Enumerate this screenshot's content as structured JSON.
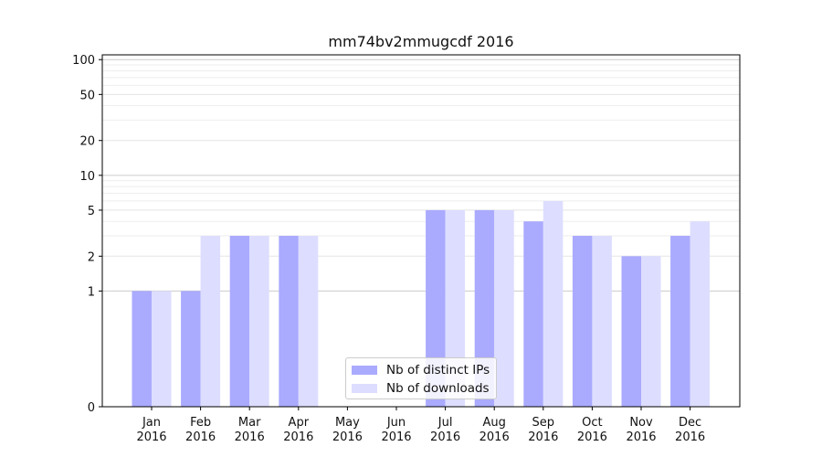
{
  "chart_data": {
    "type": "bar",
    "title": "mm74bv2mmugcdf 2016",
    "xlabel": "",
    "ylabel": "",
    "categories": [
      "Jan\n2016",
      "Feb\n2016",
      "Mar\n2016",
      "Apr\n2016",
      "May\n2016",
      "Jun\n2016",
      "Jul\n2016",
      "Aug\n2016",
      "Sep\n2016",
      "Oct\n2016",
      "Nov\n2016",
      "Dec\n2016"
    ],
    "category_labels": [
      {
        "month": "Jan",
        "year": "2016"
      },
      {
        "month": "Feb",
        "year": "2016"
      },
      {
        "month": "Mar",
        "year": "2016"
      },
      {
        "month": "Apr",
        "year": "2016"
      },
      {
        "month": "May",
        "year": "2016"
      },
      {
        "month": "Jun",
        "year": "2016"
      },
      {
        "month": "Jul",
        "year": "2016"
      },
      {
        "month": "Aug",
        "year": "2016"
      },
      {
        "month": "Sep",
        "year": "2016"
      },
      {
        "month": "Oct",
        "year": "2016"
      },
      {
        "month": "Nov",
        "year": "2016"
      },
      {
        "month": "Dec",
        "year": "2016"
      }
    ],
    "series": [
      {
        "name": "Nb of distinct IPs",
        "color": "#aaaaff",
        "values": [
          1,
          1,
          3,
          3,
          0,
          0,
          5,
          5,
          4,
          3,
          2,
          3
        ]
      },
      {
        "name": "Nb of downloads",
        "color": "#ddddff",
        "values": [
          1,
          3,
          3,
          3,
          0,
          0,
          5,
          5,
          6,
          3,
          2,
          4
        ]
      }
    ],
    "yscale": "symlog",
    "ylim": [
      0,
      110
    ],
    "y_ticks": [
      0,
      1,
      2,
      5,
      10,
      20,
      50,
      100
    ],
    "grid": true,
    "legend_position": "lower center"
  }
}
